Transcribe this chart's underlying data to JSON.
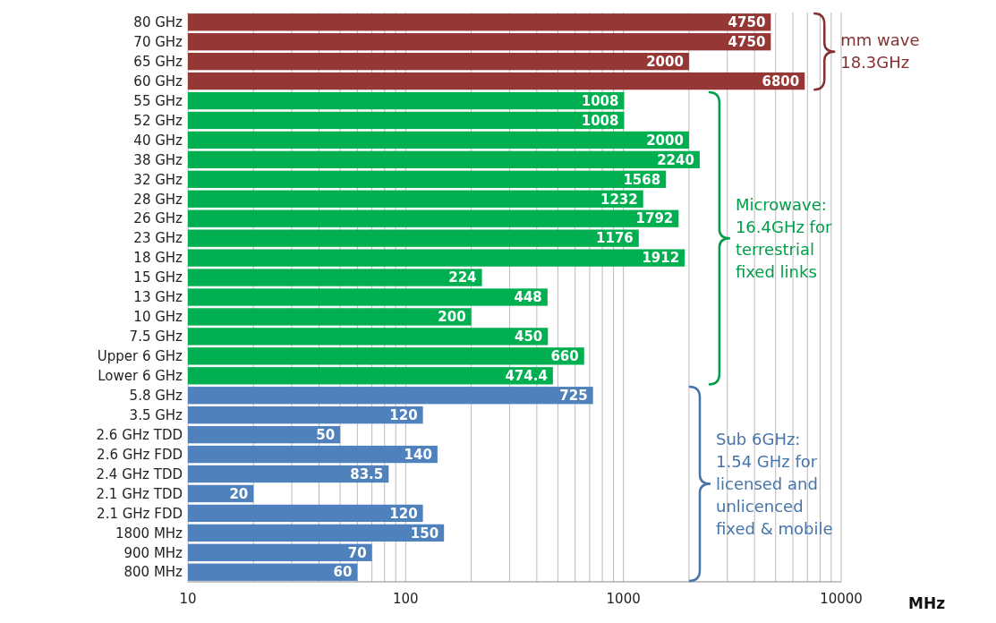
{
  "chart_data": {
    "type": "bar",
    "orientation": "horizontal",
    "log": "x",
    "xlabel": "MHz",
    "categories": [
      "80 GHz",
      "70 GHz",
      "65 GHz",
      "60 GHz",
      "55 GHz",
      "52 GHz",
      "40 GHz",
      "38 GHz",
      "32 GHz",
      "28 GHz",
      "26 GHz",
      "23 GHz",
      "18 GHz",
      "15 GHz",
      "13 GHz",
      "10 GHz",
      "7.5 GHz",
      "Upper 6 GHz",
      "Lower 6 GHz",
      "5.8 GHz",
      "3.5 GHz",
      "2.6 GHz TDD",
      "2.6 GHz FDD",
      "2.4 GHz TDD",
      "2.1 GHz TDD",
      "2.1 GHz FDD",
      "1800 MHz",
      "900 MHz",
      "800 MHz"
    ],
    "values": [
      4750,
      4750,
      2000,
      6800,
      1008,
      1008,
      2000,
      2240,
      1568,
      1232,
      1792,
      1176,
      1912,
      224,
      448,
      200,
      450,
      660,
      474.4,
      725,
      120,
      50,
      140,
      83.5,
      20,
      120,
      150,
      70,
      60
    ],
    "colors": [
      "#953735",
      "#953735",
      "#953735",
      "#953735",
      "#00b050",
      "#00b050",
      "#00b050",
      "#00b050",
      "#00b050",
      "#00b050",
      "#00b050",
      "#00b050",
      "#00b050",
      "#00b050",
      "#00b050",
      "#00b050",
      "#00b050",
      "#00b050",
      "#00b050",
      "#4f81bd",
      "#4f81bd",
      "#4f81bd",
      "#4f81bd",
      "#4f81bd",
      "#4f81bd",
      "#4f81bd",
      "#4f81bd",
      "#4f81bd",
      "#4f81bd"
    ],
    "data_labels": true,
    "grid": "x",
    "xlim": [
      10,
      10000
    ],
    "xticks": [
      10,
      {
        "value": 20,
        "label": null
      },
      {
        "value": 30,
        "label": null
      },
      {
        "value": 40,
        "label": null
      },
      {
        "value": 50,
        "label": null
      },
      {
        "value": 60,
        "label": null
      },
      {
        "value": 70,
        "label": null
      },
      {
        "value": 80,
        "label": null
      },
      {
        "value": 90,
        "label": null
      },
      100,
      {
        "value": 200,
        "label": null
      },
      {
        "value": 300,
        "label": null
      },
      {
        "value": 400,
        "label": null
      },
      {
        "value": 500,
        "label": null
      },
      {
        "value": 600,
        "label": null
      },
      {
        "value": 700,
        "label": null
      },
      {
        "value": 800,
        "label": null
      },
      {
        "value": 900,
        "label": null
      },
      1000,
      {
        "value": 2000,
        "label": null
      },
      {
        "value": 3000,
        "label": null
      },
      {
        "value": 4000,
        "label": null
      },
      {
        "value": 5000,
        "label": null
      },
      {
        "value": 6000,
        "label": null
      },
      {
        "value": 7000,
        "label": null
      },
      {
        "value": 8000,
        "label": null
      },
      {
        "value": 9000,
        "label": null
      },
      10000
    ],
    "annotations": [
      "mm wave\n18.3GHz",
      "Microwave:\n16.4GHz for\nterrestrial\nfixed links",
      "Sub 6GHz:\n1.54 GHz for\nlicensed and\nunlicenced\nfixed & mobile"
    ]
  }
}
